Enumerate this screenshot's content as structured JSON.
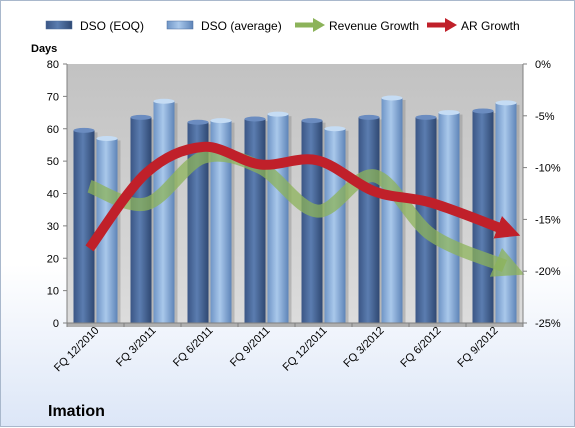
{
  "chart_data": {
    "type": "bar",
    "title": "",
    "company": "Imation",
    "ylabel": "Days",
    "ylim": [
      0,
      80
    ],
    "yticks": [
      "0",
      "10",
      "20",
      "30",
      "40",
      "50",
      "60",
      "70",
      "80"
    ],
    "y2lim": [
      -25,
      0
    ],
    "y2ticks": [
      "-25%",
      "-20%",
      "-15%",
      "-10%",
      "-5%",
      "0%"
    ],
    "categories": [
      "FQ 12/2010",
      "FQ 3/2011",
      "FQ 6/2011",
      "FQ 9/2011",
      "FQ 12/2011",
      "FQ 3/2012",
      "FQ 6/2012",
      "FQ 9/2012"
    ],
    "grid": false,
    "legend_position": "top",
    "series": [
      {
        "name": "DSO (EOQ)",
        "type": "bar",
        "axis": "left",
        "color": "#4a6a9c",
        "values": [
          59.5,
          63.5,
          62,
          63,
          62.5,
          63.5,
          63.5,
          65.5
        ]
      },
      {
        "name": "DSO (average)",
        "type": "bar",
        "axis": "left",
        "color": "#8eb2dc",
        "values": [
          57,
          68.5,
          62.5,
          64.5,
          60,
          69.5,
          65,
          68
        ]
      },
      {
        "name": "Revenue Growth",
        "type": "line",
        "axis": "right",
        "color": "#8cb35a",
        "values": [
          -11.8,
          -13.5,
          -9.0,
          -10.0,
          -14.2,
          -10.8,
          -16.5,
          -19.5
        ]
      },
      {
        "name": "AR Growth",
        "type": "line",
        "axis": "right",
        "color": "#c0202a",
        "values": [
          -17.8,
          -10.5,
          -8.0,
          -9.7,
          -9.3,
          -12.3,
          -13.4,
          -16.0
        ]
      }
    ]
  }
}
